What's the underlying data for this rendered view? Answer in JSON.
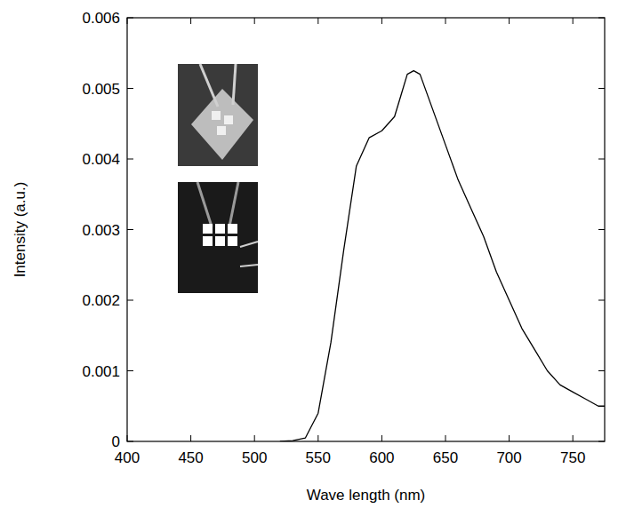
{
  "chart_data": {
    "type": "line",
    "x_label": "Wave length (nm)",
    "y_label": "Intensity (a.u.)",
    "x": [
      520,
      530,
      540,
      550,
      560,
      570,
      580,
      590,
      600,
      605,
      610,
      615,
      620,
      625,
      630,
      640,
      650,
      660,
      670,
      680,
      690,
      700,
      710,
      720,
      730,
      740,
      750,
      760,
      770,
      775
    ],
    "values": [
      0,
      1e-05,
      5e-05,
      0.0004,
      0.0014,
      0.0027,
      0.0039,
      0.0043,
      0.0044,
      0.0045,
      0.0046,
      0.0049,
      0.0052,
      0.00525,
      0.0052,
      0.0047,
      0.0042,
      0.0037,
      0.0033,
      0.0029,
      0.0024,
      0.002,
      0.0016,
      0.0013,
      0.001,
      0.0008,
      0.0007,
      0.0006,
      0.0005,
      0.0005
    ],
    "color": "#000000",
    "xlim": [
      400,
      775
    ],
    "ylim": [
      0,
      0.006
    ],
    "xticks": [
      400,
      450,
      500,
      550,
      600,
      650,
      700,
      750
    ],
    "yticks": [
      0,
      0.001,
      0.002,
      0.003,
      0.004,
      0.005,
      0.006
    ],
    "grid": false
  }
}
